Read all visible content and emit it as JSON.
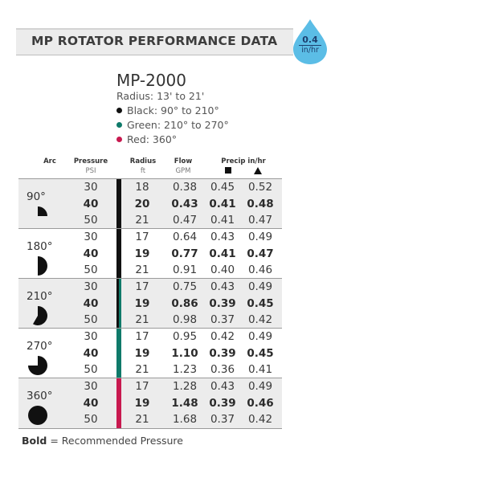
{
  "header": {
    "title": "MP ROTATOR PERFORMANCE DATA"
  },
  "precip_badge": {
    "value": "0.4",
    "unit": "in/hr",
    "color": "#5bbde6"
  },
  "model": {
    "name": "MP-2000",
    "radius": "Radius: 13' to 21'",
    "variants": [
      {
        "label": "Black: 90° to 210°",
        "color": "#111111"
      },
      {
        "label": "Green: 210° to 270°",
        "color": "#0f7a6a"
      },
      {
        "label": "Red: 360°",
        "color": "#c8194f"
      }
    ]
  },
  "columns": {
    "arc": "Arc",
    "pressure": "Pressure",
    "pressure_unit": "PSI",
    "radius": "Radius",
    "radius_unit": "ft",
    "flow": "Flow",
    "flow_unit": "GPM",
    "precip": "Precip in/hr"
  },
  "groups": [
    {
      "arc": "90°",
      "arc_fraction": 0.25,
      "bar_color": "#111111",
      "bar_color_2": "#111111",
      "rows": [
        {
          "psi": "30",
          "radius": "18",
          "flow": "0.38",
          "precip_square": "0.45",
          "precip_triangle": "0.52",
          "bold": false
        },
        {
          "psi": "40",
          "radius": "20",
          "flow": "0.43",
          "precip_square": "0.41",
          "precip_triangle": "0.48",
          "bold": true
        },
        {
          "psi": "50",
          "radius": "21",
          "flow": "0.47",
          "precip_square": "0.41",
          "precip_triangle": "0.47",
          "bold": false
        }
      ]
    },
    {
      "arc": "180°",
      "arc_fraction": 0.5,
      "bar_color": "#111111",
      "bar_color_2": "#111111",
      "rows": [
        {
          "psi": "30",
          "radius": "17",
          "flow": "0.64",
          "precip_square": "0.43",
          "precip_triangle": "0.49",
          "bold": false
        },
        {
          "psi": "40",
          "radius": "19",
          "flow": "0.77",
          "precip_square": "0.41",
          "precip_triangle": "0.47",
          "bold": true
        },
        {
          "psi": "50",
          "radius": "21",
          "flow": "0.91",
          "precip_square": "0.40",
          "precip_triangle": "0.46",
          "bold": false
        }
      ]
    },
    {
      "arc": "210°",
      "arc_fraction": 0.5833,
      "bar_color": "#111111",
      "bar_color_2": "#0f7a6a",
      "rows": [
        {
          "psi": "30",
          "radius": "17",
          "flow": "0.75",
          "precip_square": "0.43",
          "precip_triangle": "0.49",
          "bold": false
        },
        {
          "psi": "40",
          "radius": "19",
          "flow": "0.86",
          "precip_square": "0.39",
          "precip_triangle": "0.45",
          "bold": true
        },
        {
          "psi": "50",
          "radius": "21",
          "flow": "0.98",
          "precip_square": "0.37",
          "precip_triangle": "0.42",
          "bold": false
        }
      ]
    },
    {
      "arc": "270°",
      "arc_fraction": 0.75,
      "bar_color": "#0f7a6a",
      "bar_color_2": "#0f7a6a",
      "rows": [
        {
          "psi": "30",
          "radius": "17",
          "flow": "0.95",
          "precip_square": "0.42",
          "precip_triangle": "0.49",
          "bold": false
        },
        {
          "psi": "40",
          "radius": "19",
          "flow": "1.10",
          "precip_square": "0.39",
          "precip_triangle": "0.45",
          "bold": true
        },
        {
          "psi": "50",
          "radius": "21",
          "flow": "1.23",
          "precip_square": "0.36",
          "precip_triangle": "0.41",
          "bold": false
        }
      ]
    },
    {
      "arc": "360°",
      "arc_fraction": 1.0,
      "bar_color": "#c8194f",
      "bar_color_2": "#c8194f",
      "rows": [
        {
          "psi": "30",
          "radius": "17",
          "flow": "1.28",
          "precip_square": "0.43",
          "precip_triangle": "0.49",
          "bold": false
        },
        {
          "psi": "40",
          "radius": "19",
          "flow": "1.48",
          "precip_square": "0.39",
          "precip_triangle": "0.46",
          "bold": true
        },
        {
          "psi": "50",
          "radius": "21",
          "flow": "1.68",
          "precip_square": "0.37",
          "precip_triangle": "0.42",
          "bold": false
        }
      ]
    }
  ],
  "footnote": {
    "bold": "Bold",
    "text": " = Recommended Pressure"
  }
}
